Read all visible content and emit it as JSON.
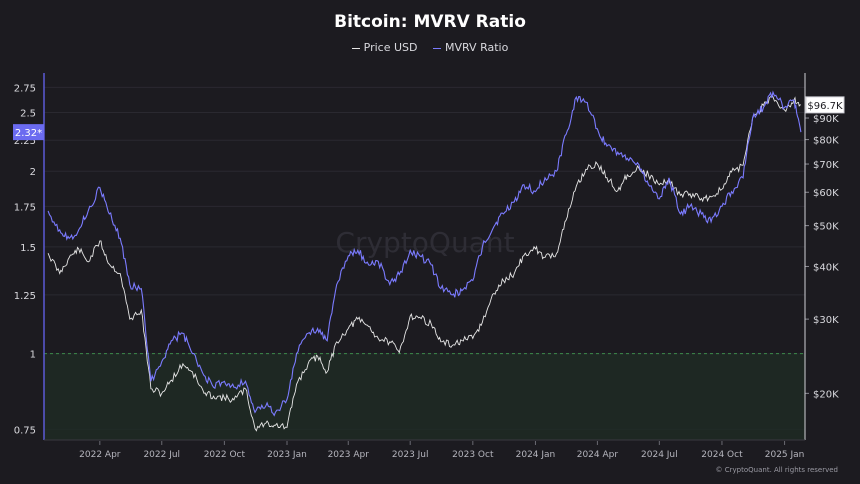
{
  "chart_data": {
    "type": "line",
    "title": "Bitcoin: MVRV Ratio",
    "legend_position": "top-center",
    "grid": true,
    "series": [
      {
        "name": "Price USD",
        "color": "#e6e6e6",
        "axis": "right"
      },
      {
        "name": "MVRV Ratio",
        "color": "#7b7bff",
        "axis": "left"
      }
    ],
    "left_axis": {
      "ticks": [
        "0.75",
        "1",
        "1.25",
        "1.5",
        "1.75",
        "2",
        "2.25",
        "2.5",
        "2.75"
      ],
      "scale": "log",
      "range": [
        0.72,
        2.85
      ],
      "current_label": "2.32*"
    },
    "right_axis": {
      "ticks": [
        "$20K",
        "$30K",
        "$40K",
        "$50K",
        "$60K",
        "$70K",
        "$80K",
        "$90K"
      ],
      "scale": "log",
      "range": [
        15500,
        112000
      ],
      "current_label": "$96.7K"
    },
    "x_axis": {
      "ticks": [
        "2022 Apr",
        "2022 Jul",
        "2022 Oct",
        "2023 Jan",
        "2023 Apr",
        "2023 Jul",
        "2023 Oct",
        "2024 Jan",
        "2024 Apr",
        "2024 Jul",
        "2024 Oct",
        "2025 Jan"
      ]
    },
    "reference_line": {
      "value": 1,
      "zone": "below 1"
    },
    "mvrv_values": {
      "x": [
        "2022-01-15",
        "2022-02-01",
        "2022-02-15",
        "2022-03-01",
        "2022-03-15",
        "2022-04-01",
        "2022-04-15",
        "2022-05-01",
        "2022-05-15",
        "2022-06-01",
        "2022-06-15",
        "2022-07-01",
        "2022-07-15",
        "2022-08-01",
        "2022-08-15",
        "2022-09-01",
        "2022-09-15",
        "2022-10-01",
        "2022-10-15",
        "2022-11-01",
        "2022-11-15",
        "2022-12-01",
        "2022-12-15",
        "2023-01-01",
        "2023-01-15",
        "2023-02-01",
        "2023-02-15",
        "2023-03-01",
        "2023-03-15",
        "2023-04-01",
        "2023-04-15",
        "2023-05-01",
        "2023-05-15",
        "2023-06-01",
        "2023-06-15",
        "2023-07-01",
        "2023-07-15",
        "2023-08-01",
        "2023-08-15",
        "2023-09-01",
        "2023-09-15",
        "2023-10-01",
        "2023-10-15",
        "2023-11-01",
        "2023-11-15",
        "2023-12-01",
        "2023-12-15",
        "2024-01-01",
        "2024-01-15",
        "2024-02-01",
        "2024-02-15",
        "2024-03-01",
        "2024-03-15",
        "2024-04-01",
        "2024-04-15",
        "2024-05-01",
        "2024-05-15",
        "2024-06-01",
        "2024-06-15",
        "2024-07-01",
        "2024-07-15",
        "2024-08-01",
        "2024-08-15",
        "2024-09-01",
        "2024-09-15",
        "2024-10-01",
        "2024-10-15",
        "2024-11-01",
        "2024-11-15",
        "2024-12-01",
        "2024-12-15",
        "2025-01-01",
        "2025-01-15",
        "2025-01-25"
      ],
      "y": [
        1.72,
        1.6,
        1.55,
        1.6,
        1.72,
        1.88,
        1.7,
        1.55,
        1.3,
        1.28,
        0.9,
        0.97,
        1.05,
        1.08,
        1.0,
        0.92,
        0.88,
        0.9,
        0.88,
        0.9,
        0.8,
        0.82,
        0.8,
        0.84,
        1.0,
        1.08,
        1.1,
        1.05,
        1.3,
        1.45,
        1.48,
        1.4,
        1.42,
        1.3,
        1.35,
        1.48,
        1.45,
        1.4,
        1.28,
        1.25,
        1.27,
        1.32,
        1.5,
        1.62,
        1.7,
        1.78,
        1.9,
        1.85,
        1.95,
        2.0,
        2.3,
        2.65,
        2.6,
        2.35,
        2.2,
        2.15,
        2.1,
        2.05,
        1.9,
        1.8,
        1.95,
        1.7,
        1.75,
        1.7,
        1.65,
        1.75,
        1.85,
        1.95,
        2.45,
        2.55,
        2.7,
        2.55,
        2.62,
        2.32
      ]
    },
    "price_values": {
      "x": [
        "2022-01-15",
        "2022-02-01",
        "2022-02-15",
        "2022-03-01",
        "2022-03-15",
        "2022-04-01",
        "2022-04-15",
        "2022-05-01",
        "2022-05-15",
        "2022-06-01",
        "2022-06-15",
        "2022-07-01",
        "2022-07-15",
        "2022-08-01",
        "2022-08-15",
        "2022-09-01",
        "2022-09-15",
        "2022-10-01",
        "2022-10-15",
        "2022-11-01",
        "2022-11-15",
        "2022-12-01",
        "2022-12-15",
        "2023-01-01",
        "2023-01-15",
        "2023-02-01",
        "2023-02-15",
        "2023-03-01",
        "2023-03-15",
        "2023-04-01",
        "2023-04-15",
        "2023-05-01",
        "2023-05-15",
        "2023-06-01",
        "2023-06-15",
        "2023-07-01",
        "2023-07-15",
        "2023-08-01",
        "2023-08-15",
        "2023-09-01",
        "2023-09-15",
        "2023-10-01",
        "2023-10-15",
        "2023-11-01",
        "2023-11-15",
        "2023-12-01",
        "2023-12-15",
        "2024-01-01",
        "2024-01-15",
        "2024-02-01",
        "2024-02-15",
        "2024-03-01",
        "2024-03-15",
        "2024-04-01",
        "2024-04-15",
        "2024-05-01",
        "2024-05-15",
        "2024-06-01",
        "2024-06-15",
        "2024-07-01",
        "2024-07-15",
        "2024-08-01",
        "2024-08-15",
        "2024-09-01",
        "2024-09-15",
        "2024-10-01",
        "2024-10-15",
        "2024-11-01",
        "2024-11-15",
        "2024-12-01",
        "2024-12-15",
        "2025-01-01",
        "2025-01-15",
        "2025-01-25"
      ],
      "y": [
        43000,
        38500,
        42000,
        44000,
        41000,
        46000,
        40500,
        38500,
        30000,
        31500,
        20500,
        20000,
        21500,
        23500,
        22500,
        20000,
        19700,
        19500,
        19300,
        20500,
        16500,
        17000,
        16800,
        16600,
        21000,
        23500,
        24500,
        22500,
        26500,
        28500,
        30000,
        28800,
        27000,
        26500,
        25000,
        30500,
        30300,
        29200,
        26500,
        26000,
        26700,
        27000,
        29500,
        34500,
        37000,
        38500,
        42500,
        44000,
        42000,
        43000,
        51500,
        62000,
        68000,
        70000,
        65000,
        60500,
        66000,
        68500,
        66000,
        62500,
        64000,
        59000,
        59500,
        58000,
        58500,
        61000,
        67000,
        69500,
        90000,
        96500,
        101000,
        94000,
        99500,
        96700
      ]
    }
  },
  "footer": "© CryptoQuant. All rights reserved",
  "watermark": "CryptoQuant"
}
